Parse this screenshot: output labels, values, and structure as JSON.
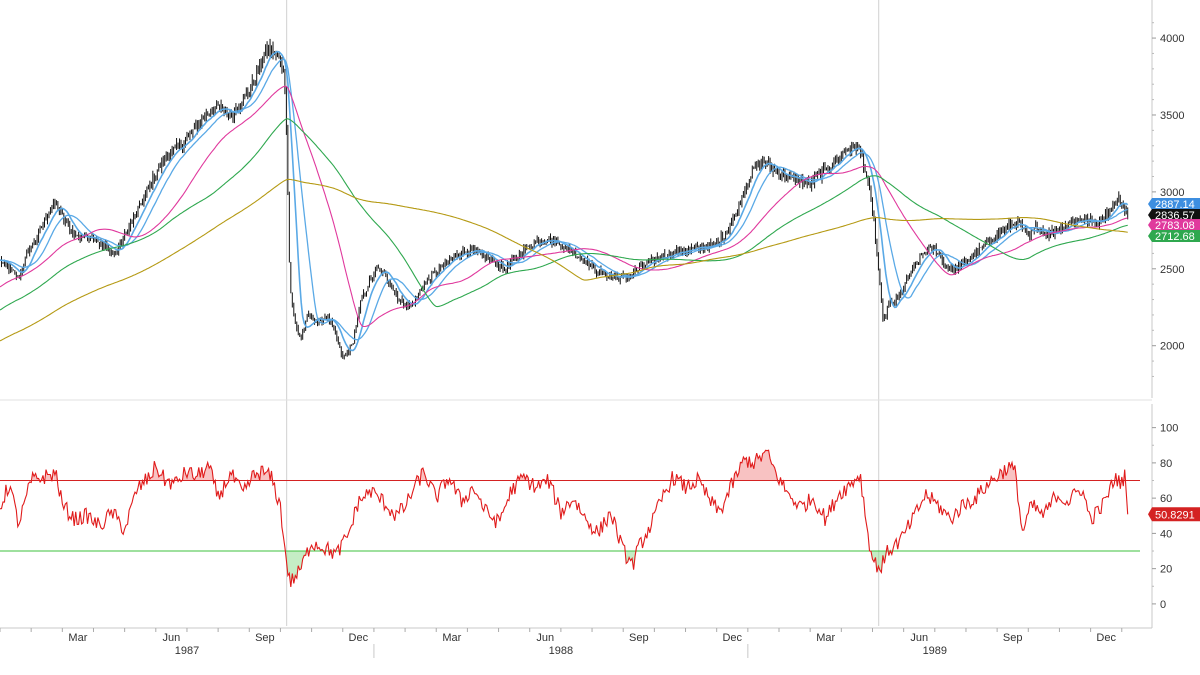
{
  "chart_data": [
    {
      "type": "candlestick",
      "title": "",
      "y_ticks": [
        2000,
        2500,
        3000,
        3500,
        4000
      ],
      "ylim": [
        1790,
        4150
      ],
      "x_month_labels": [
        "Mar",
        "Jun",
        "Sep",
        "Dec",
        "Mar",
        "Jun",
        "Sep",
        "Dec",
        "Mar",
        "Jun",
        "Sep",
        "Dec"
      ],
      "x_month_index": [
        2,
        5,
        8,
        11,
        14,
        17,
        20,
        23,
        26,
        29,
        32,
        35
      ],
      "x_year_labels": [
        "1987",
        "1988",
        "1989"
      ],
      "x_range_months": [
        0,
        36.7
      ],
      "price_anchors": [
        [
          0.0,
          2550
        ],
        [
          0.3,
          2500
        ],
        [
          0.6,
          2440
        ],
        [
          0.9,
          2610
        ],
        [
          1.2,
          2710
        ],
        [
          1.5,
          2850
        ],
        [
          1.8,
          2930
        ],
        [
          2.1,
          2800
        ],
        [
          2.5,
          2700
        ],
        [
          2.9,
          2720
        ],
        [
          3.3,
          2650
        ],
        [
          3.7,
          2600
        ],
        [
          4.1,
          2750
        ],
        [
          4.6,
          2950
        ],
        [
          5.0,
          3120
        ],
        [
          5.4,
          3250
        ],
        [
          5.8,
          3300
        ],
        [
          6.2,
          3400
        ],
        [
          6.6,
          3500
        ],
        [
          7.0,
          3550
        ],
        [
          7.4,
          3500
        ],
        [
          7.8,
          3600
        ],
        [
          8.1,
          3700
        ],
        [
          8.4,
          3850
        ],
        [
          8.6,
          3940
        ],
        [
          8.9,
          3880
        ],
        [
          9.1,
          3800
        ],
        [
          9.2,
          3400
        ],
        [
          9.3,
          2400
        ],
        [
          9.45,
          2150
        ],
        [
          9.65,
          2050
        ],
        [
          9.9,
          2200
        ],
        [
          10.2,
          2150
        ],
        [
          10.5,
          2200
        ],
        [
          10.8,
          2050
        ],
        [
          11.0,
          1920
        ],
        [
          11.3,
          2000
        ],
        [
          11.6,
          2300
        ],
        [
          11.9,
          2430
        ],
        [
          12.1,
          2500
        ],
        [
          12.4,
          2450
        ],
        [
          12.8,
          2300
        ],
        [
          13.2,
          2250
        ],
        [
          13.6,
          2400
        ],
        [
          14.1,
          2500
        ],
        [
          14.6,
          2590
        ],
        [
          15.0,
          2620
        ],
        [
          15.4,
          2600
        ],
        [
          15.8,
          2550
        ],
        [
          16.2,
          2500
        ],
        [
          16.6,
          2580
        ],
        [
          17.0,
          2650
        ],
        [
          17.4,
          2700
        ],
        [
          17.8,
          2680
        ],
        [
          18.3,
          2620
        ],
        [
          18.8,
          2550
        ],
        [
          19.2,
          2480
        ],
        [
          19.6,
          2450
        ],
        [
          20.1,
          2440
        ],
        [
          20.5,
          2500
        ],
        [
          21.0,
          2560
        ],
        [
          21.5,
          2600
        ],
        [
          22.0,
          2620
        ],
        [
          22.5,
          2640
        ],
        [
          23.0,
          2660
        ],
        [
          23.3,
          2740
        ],
        [
          23.6,
          2850
        ],
        [
          23.9,
          3020
        ],
        [
          24.2,
          3150
        ],
        [
          24.5,
          3200
        ],
        [
          24.8,
          3150
        ],
        [
          25.2,
          3100
        ],
        [
          25.6,
          3080
        ],
        [
          26.0,
          3050
        ],
        [
          26.4,
          3130
        ],
        [
          26.8,
          3200
        ],
        [
          27.2,
          3280
        ],
        [
          27.5,
          3300
        ],
        [
          27.7,
          3200
        ],
        [
          27.9,
          3000
        ],
        [
          28.05,
          2800
        ],
        [
          28.2,
          2450
        ],
        [
          28.35,
          2150
        ],
        [
          28.5,
          2260
        ],
        [
          28.8,
          2300
        ],
        [
          29.2,
          2460
        ],
        [
          29.6,
          2600
        ],
        [
          30.0,
          2640
        ],
        [
          30.4,
          2500
        ],
        [
          30.8,
          2510
        ],
        [
          31.2,
          2580
        ],
        [
          31.6,
          2650
        ],
        [
          32.0,
          2720
        ],
        [
          32.4,
          2780
        ],
        [
          32.7,
          2800
        ],
        [
          33.0,
          2700
        ],
        [
          33.3,
          2780
        ],
        [
          33.6,
          2720
        ],
        [
          34.0,
          2760
        ],
        [
          34.4,
          2810
        ],
        [
          34.8,
          2820
        ],
        [
          35.2,
          2800
        ],
        [
          35.6,
          2880
        ],
        [
          35.9,
          2960
        ],
        [
          36.1,
          2900
        ],
        [
          36.2,
          2836.57
        ]
      ],
      "series": [
        {
          "name": "",
          "role": "sma-fast",
          "color": "#5aa9e6",
          "values": [
            2887.14
          ]
        },
        {
          "name": "",
          "role": "sma-medium",
          "color": "#5aa9e6",
          "values": [
            2836.57
          ]
        },
        {
          "name": "",
          "role": "sma-slow",
          "color": "#e0399d",
          "values": [
            2783.08
          ]
        },
        {
          "name": "",
          "role": "sma-long",
          "color": "#2fa84f",
          "values": [
            2712.68
          ]
        },
        {
          "name": "",
          "role": "sma-very-long",
          "color": "#b59a14",
          "values": [
            2750
          ]
        }
      ],
      "last_value_tags": [
        {
          "value": "2887.14",
          "bg": "#3d8ee0",
          "fg": "#ffffff"
        },
        {
          "value": "2836.57",
          "bg": "#111111",
          "fg": "#ffffff"
        },
        {
          "value": "2783.08",
          "bg": "#e0399d",
          "fg": "#ffffff"
        },
        {
          "value": "2712.68",
          "bg": "#2fa84f",
          "fg": "#ffffff"
        }
      ],
      "vertical_markers_month": [
        9.2,
        28.2
      ]
    },
    {
      "type": "line",
      "title": "",
      "y_ticks": [
        0,
        20,
        40,
        60,
        80,
        100
      ],
      "ylim": [
        -8,
        110
      ],
      "overbought": 70,
      "oversold": 30,
      "rsi_anchors": [
        [
          0.0,
          55
        ],
        [
          0.3,
          68
        ],
        [
          0.6,
          45
        ],
        [
          1.0,
          70
        ],
        [
          1.4,
          72
        ],
        [
          1.8,
          74
        ],
        [
          2.0,
          56
        ],
        [
          2.4,
          48
        ],
        [
          2.8,
          50
        ],
        [
          3.2,
          44
        ],
        [
          3.6,
          52
        ],
        [
          4.0,
          42
        ],
        [
          4.4,
          65
        ],
        [
          4.8,
          72
        ],
        [
          5.0,
          78
        ],
        [
          5.3,
          70
        ],
        [
          5.6,
          68
        ],
        [
          6.0,
          75
        ],
        [
          6.3,
          72
        ],
        [
          6.7,
          78
        ],
        [
          7.0,
          60
        ],
        [
          7.4,
          74
        ],
        [
          7.8,
          62
        ],
        [
          8.1,
          72
        ],
        [
          8.4,
          75
        ],
        [
          8.7,
          72
        ],
        [
          9.0,
          55
        ],
        [
          9.15,
          30
        ],
        [
          9.3,
          12
        ],
        [
          9.6,
          18
        ],
        [
          10.0,
          35
        ],
        [
          10.4,
          32
        ],
        [
          10.8,
          28
        ],
        [
          11.2,
          40
        ],
        [
          11.5,
          58
        ],
        [
          11.9,
          64
        ],
        [
          12.3,
          58
        ],
        [
          12.7,
          50
        ],
        [
          13.0,
          55
        ],
        [
          13.3,
          66
        ],
        [
          13.6,
          75
        ],
        [
          14.0,
          60
        ],
        [
          14.4,
          72
        ],
        [
          14.8,
          58
        ],
        [
          15.2,
          66
        ],
        [
          15.6,
          52
        ],
        [
          16.0,
          46
        ],
        [
          16.4,
          64
        ],
        [
          16.8,
          72
        ],
        [
          17.2,
          66
        ],
        [
          17.6,
          70
        ],
        [
          18.0,
          52
        ],
        [
          18.4,
          60
        ],
        [
          18.8,
          48
        ],
        [
          19.2,
          40
        ],
        [
          19.6,
          52
        ],
        [
          20.0,
          30
        ],
        [
          20.3,
          22
        ],
        [
          20.5,
          32
        ],
        [
          20.9,
          45
        ],
        [
          21.3,
          62
        ],
        [
          21.6,
          72
        ],
        [
          22.0,
          66
        ],
        [
          22.4,
          70
        ],
        [
          22.8,
          58
        ],
        [
          23.1,
          52
        ],
        [
          23.5,
          68
        ],
        [
          23.9,
          82
        ],
        [
          24.2,
          80
        ],
        [
          24.6,
          86
        ],
        [
          24.9,
          74
        ],
        [
          25.3,
          62
        ],
        [
          25.7,
          55
        ],
        [
          26.1,
          60
        ],
        [
          26.5,
          48
        ],
        [
          26.9,
          62
        ],
        [
          27.3,
          68
        ],
        [
          27.6,
          74
        ],
        [
          27.85,
          40
        ],
        [
          28.0,
          25
        ],
        [
          28.25,
          20
        ],
        [
          28.5,
          30
        ],
        [
          28.9,
          36
        ],
        [
          29.3,
          48
        ],
        [
          29.7,
          62
        ],
        [
          30.1,
          56
        ],
        [
          30.5,
          48
        ],
        [
          30.9,
          56
        ],
        [
          31.3,
          60
        ],
        [
          31.7,
          68
        ],
        [
          32.1,
          74
        ],
        [
          32.4,
          78
        ],
        [
          32.6,
          74
        ],
        [
          32.8,
          40
        ],
        [
          33.1,
          56
        ],
        [
          33.5,
          50
        ],
        [
          33.9,
          62
        ],
        [
          34.3,
          58
        ],
        [
          34.7,
          66
        ],
        [
          35.0,
          48
        ],
        [
          35.4,
          56
        ],
        [
          35.8,
          72
        ],
        [
          36.0,
          68
        ],
        [
          36.1,
          74
        ],
        [
          36.2,
          50.8291
        ]
      ],
      "last_value_tag": {
        "value": "50.8291",
        "bg": "#d42222",
        "fg": "#ffffff"
      }
    }
  ]
}
